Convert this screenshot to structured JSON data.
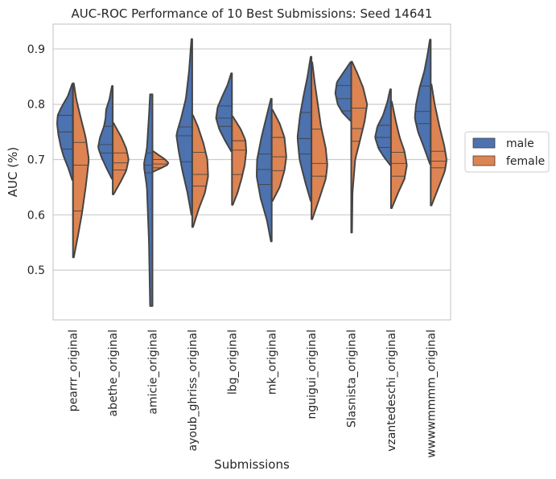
{
  "chart_data": {
    "type": "violin",
    "title": "AUC-ROC Performance of 10 Best Submissions: Seed 14641",
    "xlabel": "Submissions",
    "ylabel": "AUC (%)",
    "ylim": [
      0.41,
      0.945
    ],
    "yticks": [
      0.5,
      0.6,
      0.7,
      0.8,
      0.9
    ],
    "grid": "horizontal",
    "legend": {
      "placement": "right",
      "entries": [
        {
          "name": "male",
          "color": "#4c72b0"
        },
        {
          "name": "female",
          "color": "#dd8452"
        }
      ]
    },
    "categories": [
      "pearrr_original",
      "abethe_original",
      "amicie_original",
      "ayoub_ghriss_original",
      "lbg_original",
      "mk_original",
      "nguigui_original",
      "Slasnista_original",
      "vzantedeschi_original",
      "wwwwmmmm_original"
    ],
    "series": [
      {
        "name": "male",
        "color": "#4c72b0",
        "violins": [
          {
            "min": 0.663,
            "max": 0.837,
            "quartiles": [
              0.719,
              0.75,
              0.78
            ],
            "profile": [
              [
                0.663,
                0.05
              ],
              [
                0.685,
                0.3
              ],
              [
                0.705,
                0.58
              ],
              [
                0.725,
                0.78
              ],
              [
                0.745,
                0.92
              ],
              [
                0.765,
                1.0
              ],
              [
                0.78,
                0.96
              ],
              [
                0.795,
                0.72
              ],
              [
                0.815,
                0.32
              ],
              [
                0.837,
                0.05
              ]
            ]
          },
          {
            "min": 0.665,
            "max": 0.833,
            "quartiles": [
              0.712,
              0.727,
              0.76
            ],
            "profile": [
              [
                0.665,
                0.05
              ],
              [
                0.685,
                0.4
              ],
              [
                0.705,
                0.72
              ],
              [
                0.722,
                0.92
              ],
              [
                0.74,
                0.8
              ],
              [
                0.76,
                0.55
              ],
              [
                0.775,
                0.45
              ],
              [
                0.79,
                0.42
              ],
              [
                0.81,
                0.2
              ],
              [
                0.833,
                0.05
              ]
            ]
          },
          {
            "min": 0.435,
            "max": 0.818,
            "quartiles": [
              0.676,
              0.69,
              0.712
            ],
            "profile": [
              [
                0.435,
                0.15
              ],
              [
                0.55,
                0.22
              ],
              [
                0.65,
                0.35
              ],
              [
                0.69,
                0.55
              ],
              [
                0.72,
                0.35
              ],
              [
                0.78,
                0.22
              ],
              [
                0.818,
                0.15
              ]
            ]
          },
          {
            "min": 0.6,
            "max": 0.918,
            "quartiles": [
              0.696,
              0.743,
              0.759
            ],
            "profile": [
              [
                0.6,
                0.05
              ],
              [
                0.64,
                0.3
              ],
              [
                0.68,
                0.62
              ],
              [
                0.715,
                0.85
              ],
              [
                0.745,
                1.0
              ],
              [
                0.775,
                0.7
              ],
              [
                0.81,
                0.4
              ],
              [
                0.86,
                0.2
              ],
              [
                0.918,
                0.05
              ]
            ]
          },
          {
            "min": 0.715,
            "max": 0.856,
            "quartiles": [
              0.76,
              0.775,
              0.797
            ],
            "profile": [
              [
                0.715,
                0.05
              ],
              [
                0.735,
                0.45
              ],
              [
                0.755,
                0.8
              ],
              [
                0.775,
                1.0
              ],
              [
                0.795,
                0.9
              ],
              [
                0.815,
                0.6
              ],
              [
                0.835,
                0.28
              ],
              [
                0.856,
                0.05
              ]
            ]
          },
          {
            "min": 0.552,
            "max": 0.81,
            "quartiles": [
              0.655,
              0.682,
              0.71
            ],
            "profile": [
              [
                0.552,
                0.05
              ],
              [
                0.59,
                0.3
              ],
              [
                0.63,
                0.7
              ],
              [
                0.67,
                0.95
              ],
              [
                0.7,
                0.92
              ],
              [
                0.74,
                0.65
              ],
              [
                0.775,
                0.35
              ],
              [
                0.81,
                0.05
              ]
            ]
          },
          {
            "min": 0.625,
            "max": 0.886,
            "quartiles": [
              0.71,
              0.738,
              0.785
            ],
            "profile": [
              [
                0.625,
                0.05
              ],
              [
                0.66,
                0.4
              ],
              [
                0.7,
                0.75
              ],
              [
                0.74,
                0.88
              ],
              [
                0.78,
                0.72
              ],
              [
                0.815,
                0.5
              ],
              [
                0.85,
                0.25
              ],
              [
                0.886,
                0.05
              ]
            ]
          },
          {
            "min": 0.77,
            "max": 0.876,
            "quartiles": [
              0.788,
              0.81,
              0.834
            ],
            "profile": [
              [
                0.77,
                0.05
              ],
              [
                0.785,
                0.55
              ],
              [
                0.8,
                0.85
              ],
              [
                0.82,
                1.0
              ],
              [
                0.84,
                0.9
              ],
              [
                0.855,
                0.55
              ],
              [
                0.876,
                0.05
              ]
            ]
          },
          {
            "min": 0.69,
            "max": 0.827,
            "quartiles": [
              0.722,
              0.74,
              0.762
            ],
            "profile": [
              [
                0.69,
                0.05
              ],
              [
                0.705,
                0.45
              ],
              [
                0.72,
                0.78
              ],
              [
                0.74,
                1.0
              ],
              [
                0.76,
                0.85
              ],
              [
                0.78,
                0.5
              ],
              [
                0.805,
                0.22
              ],
              [
                0.827,
                0.05
              ]
            ]
          },
          {
            "min": 0.692,
            "max": 0.917,
            "quartiles": [
              0.765,
              0.787,
              0.833
            ],
            "profile": [
              [
                0.692,
                0.05
              ],
              [
                0.72,
                0.4
              ],
              [
                0.75,
                0.8
              ],
              [
                0.775,
                1.0
              ],
              [
                0.8,
                0.92
              ],
              [
                0.83,
                0.7
              ],
              [
                0.86,
                0.4
              ],
              [
                0.89,
                0.2
              ],
              [
                0.917,
                0.05
              ]
            ]
          }
        ]
      },
      {
        "name": "female",
        "color": "#dd8452",
        "violins": [
          {
            "min": 0.523,
            "max": 0.838,
            "quartiles": [
              0.607,
              0.69,
              0.731
            ],
            "profile": [
              [
                0.523,
                0.05
              ],
              [
                0.56,
                0.3
              ],
              [
                0.6,
                0.55
              ],
              [
                0.65,
                0.8
              ],
              [
                0.7,
                1.0
              ],
              [
                0.74,
                0.8
              ],
              [
                0.78,
                0.45
              ],
              [
                0.81,
                0.2
              ],
              [
                0.838,
                0.05
              ]
            ]
          },
          {
            "min": 0.637,
            "max": 0.766,
            "quartiles": [
              0.681,
              0.694,
              0.712
            ],
            "profile": [
              [
                0.637,
                0.05
              ],
              [
                0.66,
                0.5
              ],
              [
                0.68,
                0.85
              ],
              [
                0.7,
                1.0
              ],
              [
                0.72,
                0.85
              ],
              [
                0.74,
                0.55
              ],
              [
                0.766,
                0.05
              ]
            ]
          },
          {
            "min": 0.678,
            "max": 0.715,
            "quartiles": [
              0.685,
              0.692,
              0.7
            ],
            "profile": [
              [
                0.678,
                0.05
              ],
              [
                0.684,
                0.5
              ],
              [
                0.69,
                0.92
              ],
              [
                0.694,
                1.0
              ],
              [
                0.7,
                0.8
              ],
              [
                0.708,
                0.4
              ],
              [
                0.715,
                0.05
              ]
            ]
          },
          {
            "min": 0.578,
            "max": 0.78,
            "quartiles": [
              0.652,
              0.673,
              0.713
            ],
            "profile": [
              [
                0.578,
                0.05
              ],
              [
                0.61,
                0.4
              ],
              [
                0.64,
                0.8
              ],
              [
                0.67,
                1.0
              ],
              [
                0.7,
                0.95
              ],
              [
                0.73,
                0.7
              ],
              [
                0.76,
                0.35
              ],
              [
                0.78,
                0.05
              ]
            ]
          },
          {
            "min": 0.618,
            "max": 0.778,
            "quartiles": [
              0.673,
              0.717,
              0.734
            ],
            "profile": [
              [
                0.618,
                0.05
              ],
              [
                0.64,
                0.35
              ],
              [
                0.665,
                0.6
              ],
              [
                0.69,
                0.8
              ],
              [
                0.715,
                0.9
              ],
              [
                0.735,
                0.85
              ],
              [
                0.755,
                0.55
              ],
              [
                0.778,
                0.05
              ]
            ]
          },
          {
            "min": 0.625,
            "max": 0.79,
            "quartiles": [
              0.68,
              0.705,
              0.74
            ],
            "profile": [
              [
                0.625,
                0.05
              ],
              [
                0.65,
                0.5
              ],
              [
                0.68,
                0.8
              ],
              [
                0.705,
                0.92
              ],
              [
                0.74,
                0.8
              ],
              [
                0.765,
                0.5
              ],
              [
                0.79,
                0.05
              ]
            ]
          },
          {
            "min": 0.592,
            "max": 0.876,
            "quartiles": [
              0.67,
              0.693,
              0.755
            ],
            "profile": [
              [
                0.592,
                0.05
              ],
              [
                0.63,
                0.5
              ],
              [
                0.665,
                0.9
              ],
              [
                0.69,
                1.0
              ],
              [
                0.72,
                0.9
              ],
              [
                0.76,
                0.6
              ],
              [
                0.8,
                0.4
              ],
              [
                0.84,
                0.2
              ],
              [
                0.876,
                0.05
              ]
            ]
          },
          {
            "min": 0.568,
            "max": 0.877,
            "quartiles": [
              0.733,
              0.756,
              0.793
            ],
            "profile": [
              [
                0.568,
                0.05
              ],
              [
                0.64,
                0.08
              ],
              [
                0.7,
                0.25
              ],
              [
                0.74,
                0.6
              ],
              [
                0.77,
                0.85
              ],
              [
                0.8,
                1.0
              ],
              [
                0.83,
                0.75
              ],
              [
                0.855,
                0.4
              ],
              [
                0.877,
                0.05
              ]
            ]
          },
          {
            "min": 0.612,
            "max": 0.805,
            "quartiles": [
              0.67,
              0.693,
              0.713
            ],
            "profile": [
              [
                0.612,
                0.05
              ],
              [
                0.64,
                0.45
              ],
              [
                0.665,
                0.85
              ],
              [
                0.69,
                1.0
              ],
              [
                0.715,
                0.85
              ],
              [
                0.74,
                0.55
              ],
              [
                0.77,
                0.3
              ],
              [
                0.805,
                0.05
              ]
            ]
          },
          {
            "min": 0.617,
            "max": 0.836,
            "quartiles": [
              0.685,
              0.697,
              0.715
            ],
            "profile": [
              [
                0.617,
                0.05
              ],
              [
                0.65,
                0.5
              ],
              [
                0.68,
                0.9
              ],
              [
                0.7,
                1.0
              ],
              [
                0.725,
                0.85
              ],
              [
                0.76,
                0.55
              ],
              [
                0.8,
                0.25
              ],
              [
                0.836,
                0.05
              ]
            ]
          }
        ]
      }
    ]
  }
}
